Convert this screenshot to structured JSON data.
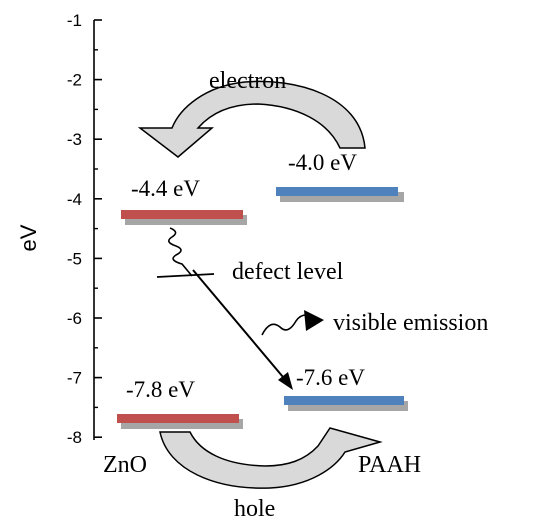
{
  "axis": {
    "label": "eV",
    "ticks": [
      "-1",
      "-2",
      "-3",
      "-4",
      "-5",
      "-6",
      "-7",
      "-8"
    ]
  },
  "levels": {
    "zno_cb": "-4.4 eV",
    "paah_cb": "-4.0 eV",
    "zno_vb": "-7.8 eV",
    "paah_vb": "-7.6 eV"
  },
  "labels": {
    "electron": "electron",
    "hole": "hole",
    "defect": "defect level",
    "emission": "visible emission",
    "zno": "ZnO",
    "paah": "PAAH"
  },
  "colors": {
    "zno_band": "#c0504d",
    "paah_band": "#4f81bd",
    "band_shadow": "#a6a6a6",
    "arrow_fill": "#d9d9d9"
  }
}
